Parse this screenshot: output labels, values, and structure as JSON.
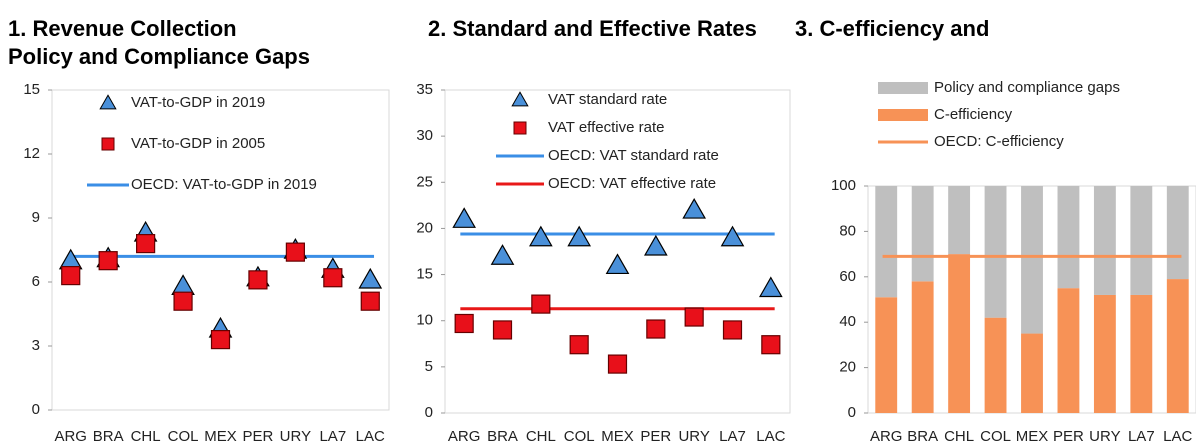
{
  "chart_data": [
    {
      "type": "scatter",
      "title": "1. Revenue Collection",
      "categories": [
        "ARG",
        "BRA",
        "CHL",
        "COL",
        "MEX",
        "PER",
        "URY",
        "LA7",
        "LAC"
      ],
      "ylim": [
        0,
        15
      ],
      "yticks": [
        0,
        3,
        6,
        9,
        12,
        15
      ],
      "series": [
        {
          "name": "VAT-to-GDP in 2019",
          "color": "#4a90d9",
          "marker": "triangle",
          "values": [
            7.0,
            7.1,
            8.3,
            5.8,
            3.8,
            6.2,
            7.5,
            6.6,
            6.1
          ]
        },
        {
          "name": "VAT-to-GDP in 2005",
          "color": "#e8101a",
          "marker": "square",
          "values": [
            6.3,
            7.0,
            7.8,
            5.1,
            3.3,
            6.1,
            7.4,
            6.2,
            5.1
          ]
        }
      ],
      "reference_lines": [
        {
          "name": "OECD: VAT-to-GDP in 2019",
          "color": "#3a8ee6",
          "value": 7.2
        }
      ]
    },
    {
      "type": "scatter",
      "title": "2. Standard and Effective Rates",
      "categories": [
        "ARG",
        "BRA",
        "CHL",
        "COL",
        "MEX",
        "PER",
        "URY",
        "LA7",
        "LAC"
      ],
      "ylim": [
        0,
        35
      ],
      "yticks": [
        0,
        5,
        10,
        15,
        20,
        25,
        30,
        35
      ],
      "series": [
        {
          "name": "VAT standard rate",
          "color": "#4a90d9",
          "marker": "triangle",
          "values": [
            21,
            17,
            19,
            19,
            16,
            18,
            22,
            19,
            13.5
          ]
        },
        {
          "name": "VAT effective rate",
          "color": "#e8101a",
          "marker": "square",
          "values": [
            9.7,
            9.0,
            11.8,
            7.4,
            5.3,
            9.1,
            10.4,
            9.0,
            7.4
          ]
        }
      ],
      "reference_lines": [
        {
          "name": "OECD: VAT standard rate",
          "color": "#3a8ee6",
          "value": 19.4
        },
        {
          "name": "OECD: VAT effective rate",
          "color": "#e81818",
          "value": 11.3
        }
      ]
    },
    {
      "type": "stacked_bar",
      "title": [
        "3. C-efficiency and",
        "Policy and Compliance Gaps"
      ],
      "categories": [
        "ARG",
        "BRA",
        "CHL",
        "COL",
        "MEX",
        "PER",
        "URY",
        "LA7",
        "LAC"
      ],
      "ylim": [
        0,
        100
      ],
      "yticks": [
        0,
        20,
        40,
        60,
        80,
        100
      ],
      "series": [
        {
          "name": "C-efficiency",
          "color": "#f79256",
          "values": [
            51,
            58,
            70,
            42,
            35,
            55,
            52,
            52,
            59
          ]
        },
        {
          "name": "Policy and compliance gaps",
          "color": "#bfbfbf",
          "values": [
            49,
            42,
            30,
            58,
            65,
            45,
            48,
            48,
            41
          ]
        }
      ],
      "reference_lines": [
        {
          "name": "OECD: C-efficiency",
          "color": "#f79256",
          "value": 69
        }
      ]
    }
  ]
}
